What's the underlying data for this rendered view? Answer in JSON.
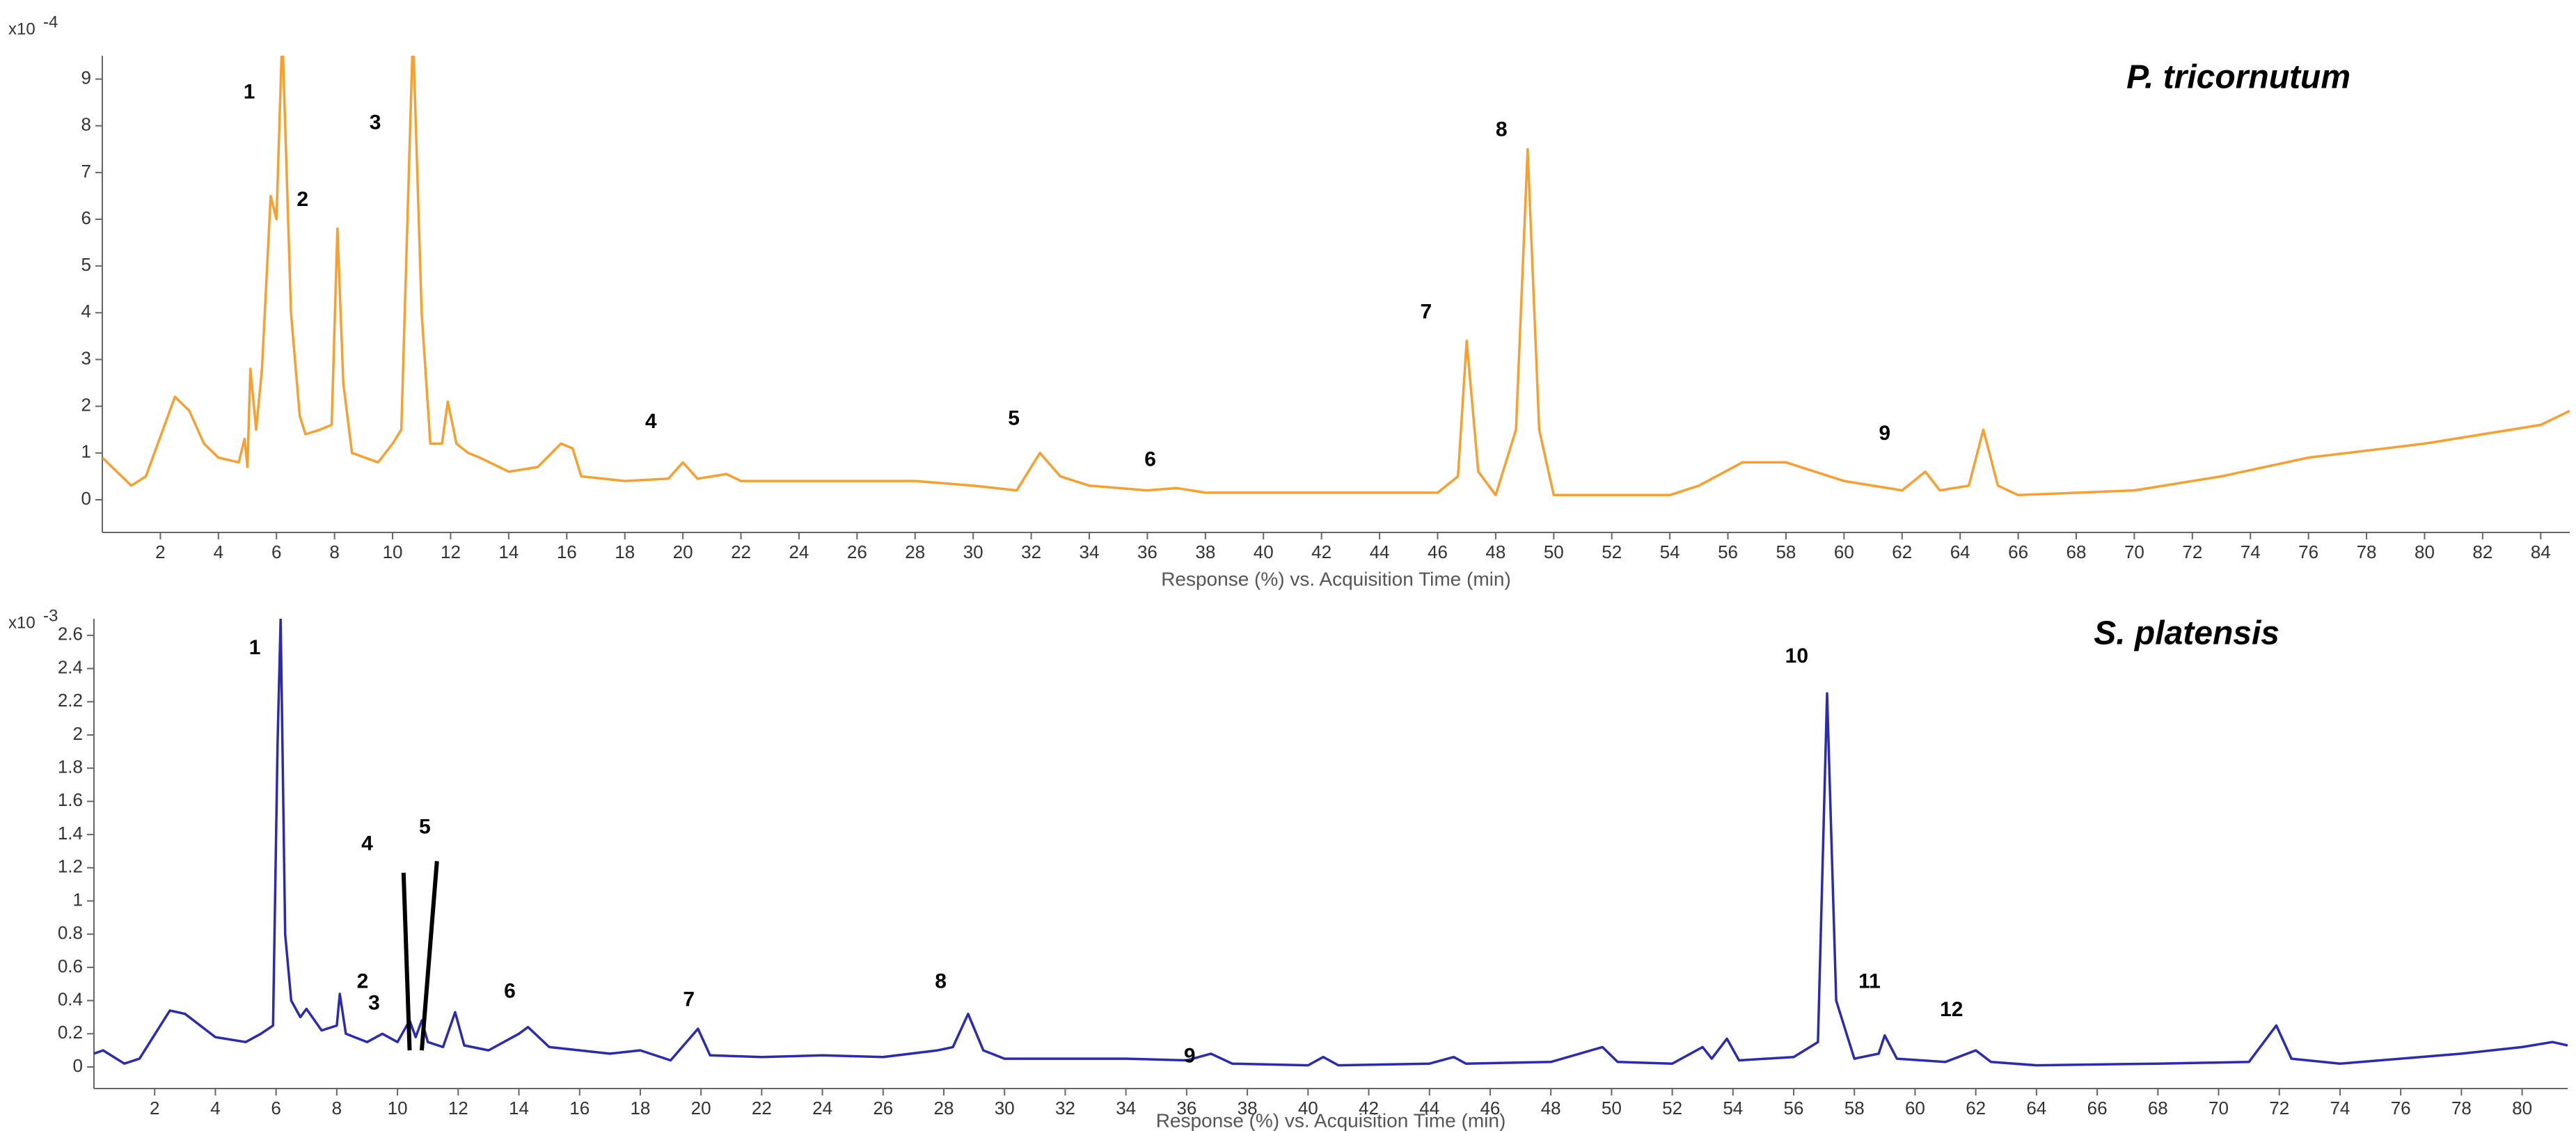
{
  "chart_data": [
    {
      "type": "line",
      "title": "P. tricornutum",
      "multiplier": "x10",
      "multiplier_exp": "-4",
      "x_label": "Response (%) vs. Acquisition Time (min)",
      "color": "#f5a030",
      "xlim": [
        0,
        85
      ],
      "ylim": [
        -0.7,
        9.5
      ],
      "xticks": [
        2,
        4,
        6,
        8,
        10,
        12,
        14,
        16,
        18,
        20,
        22,
        24,
        26,
        28,
        30,
        32,
        34,
        36,
        38,
        40,
        42,
        44,
        46,
        48,
        50,
        52,
        54,
        56,
        58,
        60,
        62,
        64,
        66,
        68,
        70,
        72,
        74,
        76,
        78,
        80,
        82,
        84
      ],
      "yticks": [
        0,
        1,
        2,
        3,
        4,
        5,
        6,
        7,
        8,
        9
      ],
      "x": [
        0,
        0.5,
        1,
        1.5,
        2.5,
        3,
        3.5,
        4,
        4.7,
        4.9,
        5.0,
        5.1,
        5.3,
        5.5,
        5.8,
        6.0,
        6.2,
        6.5,
        6.8,
        7,
        7.5,
        7.9,
        8.1,
        8.3,
        8.6,
        9.5,
        10.0,
        10.3,
        10.7,
        11.0,
        11.3,
        11.7,
        11.9,
        12.2,
        12.6,
        13,
        14,
        15,
        15.8,
        16.2,
        16.5,
        18,
        19.5,
        20,
        20.5,
        21.5,
        22,
        26,
        28,
        30,
        31.5,
        32.3,
        33,
        34,
        36,
        37,
        38,
        42,
        46,
        46.7,
        47.0,
        47.4,
        48,
        48.7,
        49.1,
        49.5,
        50,
        54,
        55,
        56.5,
        58,
        59.5,
        60,
        62,
        62.8,
        63.3,
        64.3,
        64.8,
        65.3,
        66,
        70,
        73,
        76,
        80,
        84,
        85
      ],
      "values": [
        0.9,
        0.6,
        0.3,
        0.5,
        2.2,
        1.9,
        1.2,
        0.9,
        0.8,
        1.3,
        0.7,
        2.8,
        1.5,
        2.8,
        6.5,
        6.0,
        10,
        4,
        1.8,
        1.4,
        1.5,
        1.6,
        5.8,
        2.5,
        1.0,
        0.8,
        1.2,
        1.5,
        10,
        4,
        1.2,
        1.2,
        2.1,
        1.2,
        1.0,
        0.9,
        0.6,
        0.7,
        1.2,
        1.1,
        0.5,
        0.4,
        0.45,
        0.8,
        0.45,
        0.55,
        0.4,
        0.4,
        0.4,
        0.3,
        0.2,
        1.0,
        0.5,
        0.3,
        0.2,
        0.25,
        0.15,
        0.15,
        0.15,
        0.5,
        3.4,
        0.6,
        0.1,
        1.5,
        7.5,
        1.5,
        0.1,
        0.1,
        0.3,
        0.8,
        0.8,
        0.5,
        0.4,
        0.2,
        0.6,
        0.2,
        0.3,
        1.5,
        0.3,
        0.1,
        0.2,
        0.5,
        0.9,
        1.2,
        1.6,
        1.9
      ],
      "annotations": [
        {
          "text": "1",
          "x": 5.06,
          "y": 8.7
        },
        {
          "text": "2",
          "x": 6.9,
          "y": 6.4
        },
        {
          "text": "3",
          "x": 9.4,
          "y": 8.05
        },
        {
          "text": "4",
          "x": 18.9,
          "y": 1.65
        },
        {
          "text": "5",
          "x": 31.4,
          "y": 1.72
        },
        {
          "text": "6",
          "x": 36.1,
          "y": 0.84
        },
        {
          "text": "7",
          "x": 45.6,
          "y": 4.0
        },
        {
          "text": "8",
          "x": 48.2,
          "y": 7.9
        },
        {
          "text": "9",
          "x": 61.4,
          "y": 1.4
        }
      ]
    },
    {
      "type": "line",
      "title": "S. platensis",
      "multiplier": "x10",
      "multiplier_exp": "-3",
      "x_label": "Response (%) vs. Acquisition Time (min)",
      "color": "#2b2bb0",
      "xlim": [
        0,
        81.5
      ],
      "ylim": [
        -0.13,
        2.7
      ],
      "xticks": [
        2,
        4,
        6,
        8,
        10,
        12,
        14,
        16,
        18,
        20,
        22,
        24,
        26,
        28,
        30,
        32,
        34,
        36,
        38,
        40,
        42,
        44,
        46,
        48,
        50,
        52,
        54,
        56,
        58,
        60,
        62,
        64,
        66,
        68,
        70,
        72,
        74,
        76,
        78,
        80
      ],
      "yticks": [
        0,
        0.2,
        0.4,
        0.6,
        0.8,
        1,
        1.2,
        1.4,
        1.6,
        1.8,
        2,
        2.2,
        2.4,
        2.6
      ],
      "x": [
        0,
        0.3,
        1,
        1.5,
        2.5,
        3,
        4,
        5,
        5.5,
        5.9,
        6.05,
        6.15,
        6.3,
        6.5,
        6.8,
        7,
        7.5,
        8,
        8.1,
        8.3,
        9,
        9.5,
        10,
        10.4,
        10.6,
        10.8,
        11,
        11.5,
        11.9,
        12.2,
        13,
        14,
        14.3,
        15,
        16,
        17,
        18,
        19,
        19.9,
        20.3,
        22,
        24,
        26,
        27.8,
        28.3,
        28.8,
        29.3,
        30,
        34,
        36,
        36.8,
        37.5,
        40,
        40.5,
        41,
        44,
        44.8,
        45.2,
        48,
        49.7,
        50.2,
        52,
        53,
        53.3,
        53.8,
        54.2,
        56,
        56.8,
        57.1,
        57.4,
        58,
        58.8,
        59,
        59.4,
        61,
        62,
        62.5,
        64,
        68,
        71,
        71.9,
        72.4,
        74,
        78,
        80,
        81,
        81.5
      ],
      "values": [
        0.08,
        0.1,
        0.02,
        0.05,
        0.34,
        0.32,
        0.18,
        0.15,
        0.2,
        0.25,
        1.95,
        2.7,
        0.8,
        0.4,
        0.3,
        0.35,
        0.22,
        0.25,
        0.44,
        0.2,
        0.15,
        0.2,
        0.15,
        0.28,
        0.18,
        0.28,
        0.15,
        0.12,
        0.33,
        0.13,
        0.1,
        0.2,
        0.24,
        0.12,
        0.1,
        0.08,
        0.1,
        0.04,
        0.23,
        0.07,
        0.06,
        0.07,
        0.06,
        0.1,
        0.12,
        0.32,
        0.1,
        0.05,
        0.05,
        0.04,
        0.08,
        0.02,
        0.01,
        0.06,
        0.01,
        0.02,
        0.06,
        0.02,
        0.03,
        0.12,
        0.03,
        0.02,
        0.12,
        0.05,
        0.17,
        0.04,
        0.06,
        0.15,
        2.25,
        0.4,
        0.05,
        0.08,
        0.19,
        0.05,
        0.03,
        0.1,
        0.03,
        0.01,
        0.02,
        0.03,
        0.25,
        0.05,
        0.02,
        0.08,
        0.12,
        0.15,
        0.13
      ],
      "annotations": [
        {
          "text": "1",
          "x": 5.3,
          "y": 2.52
        },
        {
          "text": "2",
          "x": 8.85,
          "y": 0.51
        },
        {
          "text": "3",
          "x": 9.23,
          "y": 0.38
        },
        {
          "text": "4",
          "x": 9.0,
          "y": 1.34,
          "arrow_from": [
            10.2,
            1.17
          ],
          "arrow_to": [
            10.4,
            0.1
          ]
        },
        {
          "text": "5",
          "x": 10.9,
          "y": 1.44,
          "arrow_from": [
            11.3,
            1.24
          ],
          "arrow_to": [
            10.8,
            0.1
          ]
        },
        {
          "text": "6",
          "x": 13.7,
          "y": 0.45
        },
        {
          "text": "7",
          "x": 19.6,
          "y": 0.4
        },
        {
          "text": "8",
          "x": 27.9,
          "y": 0.51
        },
        {
          "text": "9",
          "x": 36.1,
          "y": 0.06
        },
        {
          "text": "10",
          "x": 56.1,
          "y": 2.47
        },
        {
          "text": "11",
          "x": 58.5,
          "y": 0.51
        },
        {
          "text": "12",
          "x": 61.2,
          "y": 0.34
        }
      ]
    }
  ]
}
